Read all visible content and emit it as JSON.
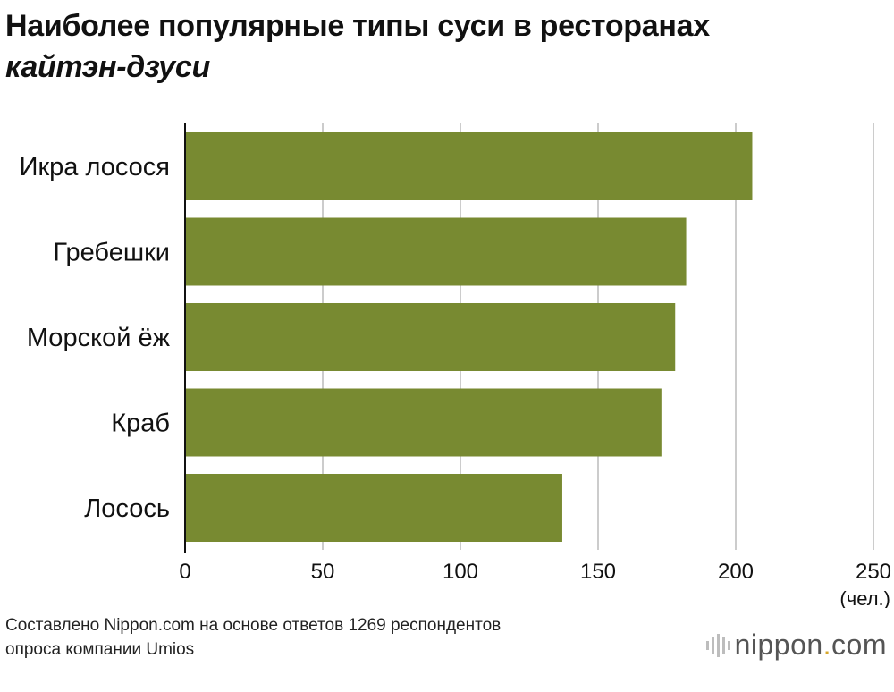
{
  "title": {
    "line1": "Наиболее популярные типы суси в ресторанах",
    "line2": "кайтэн-дзуси"
  },
  "chart_data": {
    "type": "bar",
    "orientation": "horizontal",
    "categories": [
      "Икра лосося",
      "Гребешки",
      "Морской ёж",
      "Краб",
      "Лосось"
    ],
    "values": [
      206,
      182,
      178,
      173,
      137
    ],
    "xlim": [
      0,
      250
    ],
    "xticks": [
      0,
      50,
      100,
      150,
      200,
      250
    ],
    "xunit": "(чел.)",
    "grid": true,
    "bar_color": "#788a31",
    "grid_color": "#cccccc"
  },
  "footer": {
    "source_line1": "Составлено Nippon.com на основе ответов 1269 респондентов",
    "source_line2": "опроса компании Umios"
  },
  "logo": {
    "text_left": "nippon",
    "text_dot": ".",
    "text_right": "com",
    "accent": "#d7a72b"
  }
}
